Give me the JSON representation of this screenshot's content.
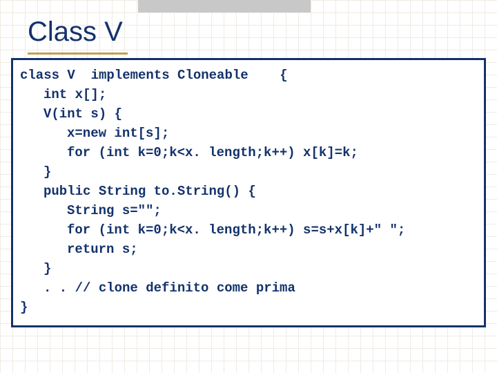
{
  "slide": {
    "title": "Class V",
    "title_color": "#13326b",
    "title_fontsize": 40,
    "underline_color": "#c0a050",
    "topbar_color": "#c8c8c8",
    "grid_color": "#f0ebe4",
    "background_color": "#ffffff"
  },
  "code": {
    "box_border_color": "#13326b",
    "text_color": "#13326b",
    "font_family": "Courier New",
    "fontsize": 19,
    "lines": {
      "l0": "class V  implements Cloneable    {",
      "l1": "int x[];",
      "l2": "V(int s) {",
      "l3": "x=new int[s];",
      "l4": "for (int k=0;k<x. length;k++) x[k]=k;",
      "l5": "}",
      "l6": "public String to.String() {",
      "l7": "String s=\"\";",
      "l8": "for (int k=0;k<x. length;k++) s=s+x[k]+\" \";",
      "l9": "return s;",
      "l10": "}",
      "l11": ". . // clone definito come prima",
      "l12": "}"
    }
  }
}
